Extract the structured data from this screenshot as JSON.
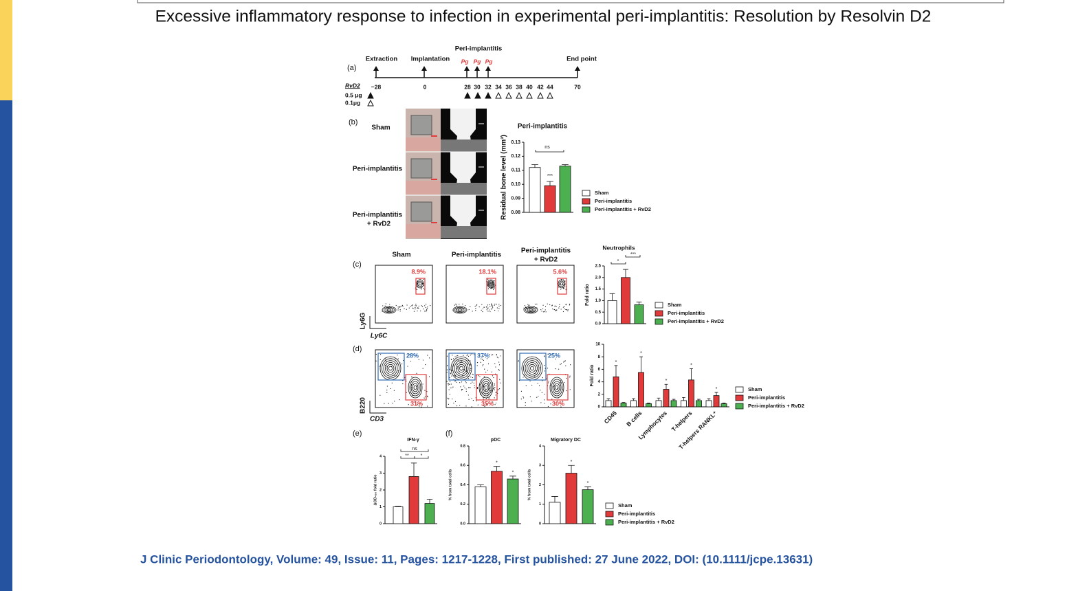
{
  "slide": {
    "title": "Excessive inflammatory response to infection in experimental peri-implantitis: Resolution by Resolvin D2",
    "citation": "J Clinic Periodontology, Volume: 49, Issue: 11, Pages: 1217-1228, First published: 27 June 2022, DOI: (10.1111/jcpe.13631)"
  },
  "figure": {
    "panel_labels": [
      "(a)",
      "(b)",
      "(c)",
      "(d)",
      "(e)",
      "(f)"
    ],
    "timeline": {
      "events": [
        "Extraction",
        "Implantation",
        "Peri-implantitis",
        "End point"
      ],
      "challenge": [
        "Pg",
        "Pg",
        "Pg"
      ],
      "treatment": "RvD2",
      "days": [
        "−28",
        "0",
        "28",
        "30",
        "32",
        "34",
        "36",
        "38",
        "40",
        "42",
        "44",
        "70"
      ],
      "doses": [
        "0.5 μg",
        "0.1μg"
      ]
    },
    "image_rows": [
      [
        "Sham"
      ],
      [
        "Peri-implantitis"
      ],
      [
        "Peri-implantitis",
        "+ RvD2"
      ]
    ],
    "flow": {
      "columns": [
        [
          "Sham"
        ],
        [
          "Peri-implantitis"
        ],
        [
          "Peri-implantitis",
          "+ RvD2"
        ]
      ],
      "c": {
        "y_axis": "Ly6G",
        "x_axis": "Ly6C",
        "gates": [
          "8.9%",
          "18.1%",
          "5.6%"
        ]
      },
      "d": {
        "y_axis": "B220",
        "x_axis": "CD3",
        "upper_gates": [
          "28%",
          "37%",
          "25%"
        ],
        "lower_gates": [
          "31%",
          "35%",
          "30%"
        ]
      }
    },
    "charts": [
      {
        "title": "Peri-implantitis",
        "y_label": "Residual bone level (mm³)",
        "ylim": [
          0.08,
          0.13
        ],
        "yticks": [
          0.08,
          {
            "value": 0.09,
            "label": "0.09"
          },
          {
            "value": 0.1,
            "label": "0.10"
          },
          0.11,
          0.12,
          0.13
        ],
        "series": [
          {
            "name": "Sham",
            "color": "#ffffff",
            "values": [
              0.112
            ],
            "errors": [
              0.002
            ]
          },
          {
            "name": "Peri-implantitis",
            "color": "#e03a3a",
            "values": [
              0.099
            ],
            "errors": [
              0.003
            ]
          },
          {
            "name": "Peri-implantitis + RvD2",
            "color": "#4caf50",
            "values": [
              0.113
            ],
            "errors": [
              0.001
            ]
          }
        ],
        "annotations": [
          "ns",
          "***"
        ]
      },
      {
        "title": "Neutrophils",
        "y_label": "Fold ratio",
        "ylim": [
          0,
          2.5
        ],
        "yticks": [
          {
            "value": 0,
            "label": "0.0"
          },
          0.5,
          {
            "value": 1,
            "label": "1.0"
          },
          1.5,
          {
            "value": 2,
            "label": "2.0"
          },
          2.5
        ],
        "series": [
          {
            "name": "Sham",
            "color": "#ffffff",
            "values": [
              1.0
            ],
            "errors": [
              0.3
            ]
          },
          {
            "name": "Peri-implantitis",
            "color": "#e03a3a",
            "values": [
              2.0
            ],
            "errors": [
              0.35
            ]
          },
          {
            "name": "Peri-implantitis + RvD2",
            "color": "#4caf50",
            "values": [
              0.82
            ],
            "errors": [
              0.12
            ]
          }
        ],
        "annotations": [
          "*",
          "***"
        ]
      },
      {
        "y_label": "Fold ratio",
        "ylim": [
          0,
          10
        ],
        "yticks": [
          0,
          2,
          4,
          6,
          8,
          10
        ],
        "categories": [
          "CD45",
          "B cells",
          "Lymphocytes",
          "T-helpers",
          "T-helpers RANKL⁺"
        ],
        "series": [
          {
            "name": "Sham",
            "color": "#ffffff",
            "values": [
              1.0,
              1.0,
              1.0,
              1.0,
              1.0
            ],
            "errors": [
              0.3,
              0.3,
              0.4,
              0.5,
              0.3
            ]
          },
          {
            "name": "Peri-implantitis",
            "color": "#e03a3a",
            "values": [
              4.8,
              5.5,
              2.8,
              4.3,
              1.8
            ],
            "errors": [
              1.8,
              2.5,
              0.8,
              1.8,
              0.5
            ]
          },
          {
            "name": "Peri-implantitis + RvD2",
            "color": "#4caf50",
            "values": [
              0.6,
              0.5,
              1.0,
              1.0,
              0.5
            ],
            "errors": [
              0.1,
              0.1,
              0.2,
              0.2,
              0.1
            ]
          }
        ],
        "annotations": [
          "*",
          "*",
          "*",
          "*",
          "*"
        ]
      },
      {
        "title": "IFN-γ",
        "y_label": "ΔOD₄₅₀ fold ratio",
        "ylim": [
          0,
          4
        ],
        "yticks": [
          0,
          1,
          2,
          3,
          4
        ],
        "series": [
          {
            "color": "#ffffff",
            "values": [
              1.0
            ],
            "errors": [
              0.03
            ]
          },
          {
            "color": "#e03a3a",
            "values": [
              2.8
            ],
            "errors": [
              0.8
            ]
          },
          {
            "color": "#4caf50",
            "values": [
              1.2
            ],
            "errors": [
              0.25
            ]
          }
        ],
        "annotations": [
          "ns",
          "**",
          "*"
        ]
      },
      {
        "title": "pDC",
        "y_label": "% from total cells",
        "ylim": [
          0,
          0.8
        ],
        "yticks": [
          {
            "value": 0,
            "label": "0.0"
          },
          0.2,
          0.4,
          0.6,
          0.8
        ],
        "series": [
          {
            "color": "#ffffff",
            "values": [
              0.38
            ],
            "errors": [
              0.02
            ]
          },
          {
            "color": "#e03a3a",
            "values": [
              0.54
            ],
            "errors": [
              0.05
            ]
          },
          {
            "color": "#4caf50",
            "values": [
              0.46
            ],
            "errors": [
              0.03
            ]
          }
        ],
        "annotations": [
          "*",
          "*"
        ]
      },
      {
        "title": "Migratory DC",
        "y_label": "% from total cells",
        "ylim": [
          0,
          4
        ],
        "yticks": [
          0,
          1,
          2,
          3,
          4
        ],
        "series": [
          {
            "name": "Sham",
            "color": "#ffffff",
            "values": [
              1.1
            ],
            "errors": [
              0.3
            ]
          },
          {
            "name": "Peri-implantitis",
            "color": "#e03a3a",
            "values": [
              2.6
            ],
            "errors": [
              0.4
            ]
          },
          {
            "name": "Peri-implantitis + RvD2",
            "color": "#4caf50",
            "values": [
              1.75
            ],
            "errors": [
              0.15
            ]
          }
        ],
        "annotations": [
          "*",
          "*"
        ]
      }
    ]
  }
}
